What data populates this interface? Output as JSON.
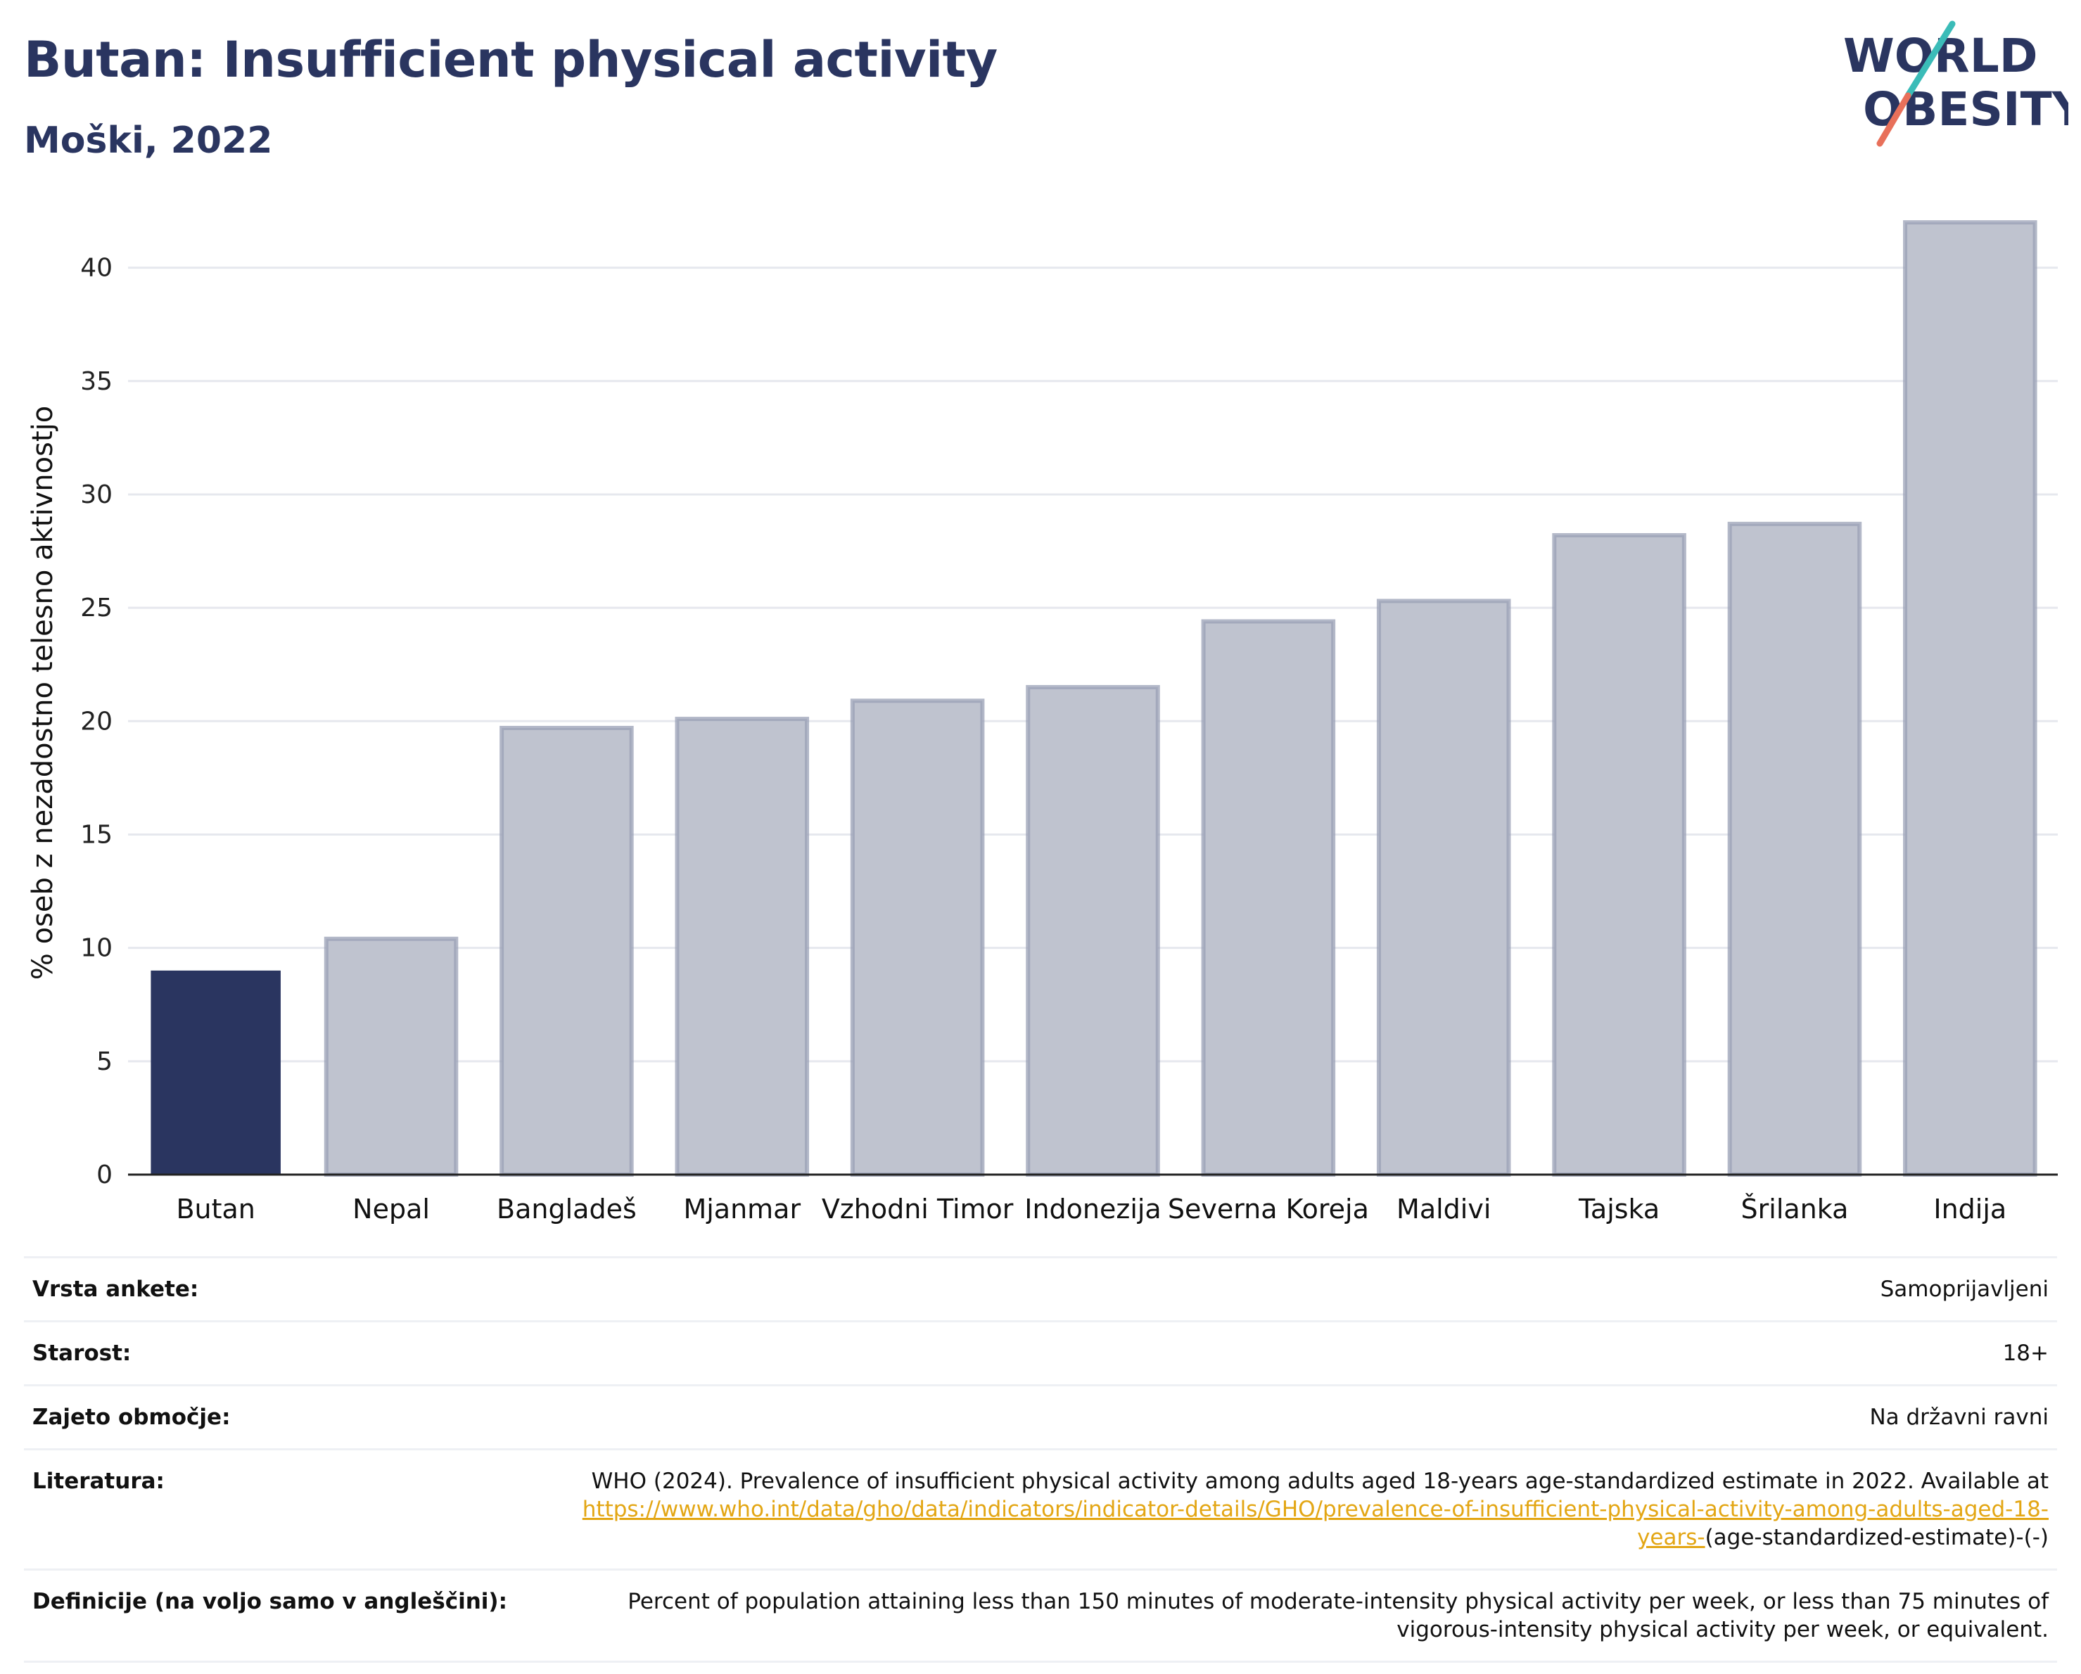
{
  "header": {
    "title": "Butan: Insufficient physical activity",
    "subtitle": "Moški, 2022",
    "logo_line1": "WORLD",
    "logo_line2": "OBESITY"
  },
  "colors": {
    "title": "#2a3560",
    "highlight_bar": "#2a3560",
    "other_bar_fill": "#bfc3cf",
    "other_bar_stroke": "#9aa0b5",
    "link": "#e3a614",
    "logo_slash_teal": "#3bbcb8",
    "logo_slash_coral": "#e8705a"
  },
  "chart_data": {
    "type": "bar",
    "ylabel": "% oseb z nezadostno telesno aktivnostjo",
    "xlabel": "",
    "ylim": [
      0,
      42.5
    ],
    "yticks": [
      0,
      5,
      10,
      15,
      20,
      25,
      30,
      35,
      40
    ],
    "grid": true,
    "highlight": "Butan",
    "categories": [
      "Butan",
      "Nepal",
      "Bangladeš",
      "Mjanmar",
      "Vzhodni Timor",
      "Indonezija",
      "Severna Koreja",
      "Maldivi",
      "Tajska",
      "Šrilanka",
      "Indija"
    ],
    "values": [
      9.0,
      10.4,
      19.7,
      20.1,
      20.9,
      21.5,
      24.4,
      25.3,
      28.2,
      28.7,
      42.0
    ]
  },
  "info": {
    "survey_label": "Vrsta ankete:",
    "survey_value": "Samoprijavljeni",
    "age_label": "Starost:",
    "age_value": "18+",
    "coverage_label": "Zajeto območje:",
    "coverage_value": "Na državni ravni",
    "reference_label": "Literatura:",
    "reference_text": "WHO (2024). Prevalence of insufficient physical activity among adults aged 18-years age-standardized estimate in 2022. Available at",
    "reference_link": "https://www.who.int/data/gho/data/indicators/indicator-details/GHO/prevalence-of-insufficient-physical-activity-among-adults-aged-18-years-",
    "reference_suffix": "(age-standardized-estimate)-(-)",
    "definition_label": "Definicije (na voljo samo v angleščini):",
    "definition_value": "Percent of population attaining less than 150 minutes of moderate-intensity physical activity per week, or less than 75 minutes of vigorous-intensity physical activity per week, or equivalent."
  }
}
